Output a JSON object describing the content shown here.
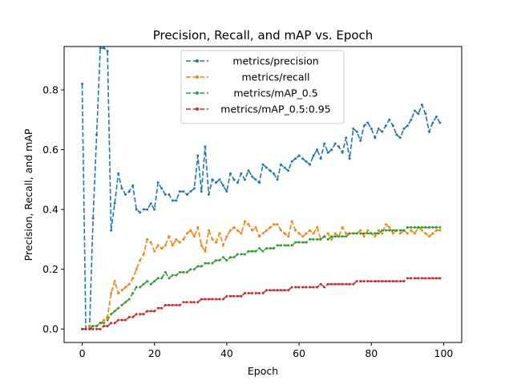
{
  "chart_data": {
    "type": "line",
    "title": "Precision, Recall, and mAP vs. Epoch",
    "xlabel": "Epoch",
    "ylabel": "Precision, Recall, and mAP",
    "xlim": [
      -5,
      105
    ],
    "ylim": [
      -0.045,
      0.945
    ],
    "xticks": [
      0,
      20,
      40,
      60,
      80,
      100
    ],
    "yticks": [
      0.0,
      0.2,
      0.4,
      0.6,
      0.8
    ],
    "xtick_labels": [
      "0",
      "20",
      "40",
      "60",
      "80",
      "100"
    ],
    "ytick_labels": [
      "0.0",
      "0.2",
      "0.4",
      "0.6",
      "0.8"
    ],
    "legend_position": "top-center",
    "grid": false,
    "series": [
      {
        "name": "metrics/precision",
        "color": "#1f77b4",
        "values": [
          0.82,
          0.0,
          0.0,
          0.37,
          0.65,
          0.94,
          0.94,
          0.93,
          0.33,
          0.42,
          0.52,
          0.47,
          0.45,
          0.46,
          0.48,
          0.4,
          0.39,
          0.4,
          0.4,
          0.42,
          0.4,
          0.49,
          0.47,
          0.45,
          0.45,
          0.43,
          0.43,
          0.46,
          0.46,
          0.45,
          0.46,
          0.47,
          0.58,
          0.46,
          0.61,
          0.45,
          0.5,
          0.49,
          0.5,
          0.48,
          0.46,
          0.52,
          0.5,
          0.49,
          0.52,
          0.5,
          0.53,
          0.51,
          0.5,
          0.49,
          0.55,
          0.54,
          0.53,
          0.52,
          0.5,
          0.55,
          0.54,
          0.53,
          0.56,
          0.57,
          0.58,
          0.57,
          0.56,
          0.55,
          0.58,
          0.6,
          0.57,
          0.62,
          0.59,
          0.6,
          0.62,
          0.61,
          0.59,
          0.64,
          0.57,
          0.67,
          0.66,
          0.63,
          0.68,
          0.69,
          0.67,
          0.64,
          0.67,
          0.66,
          0.68,
          0.7,
          0.68,
          0.65,
          0.64,
          0.67,
          0.68,
          0.7,
          0.73,
          0.72,
          0.75,
          0.72,
          0.66,
          0.69,
          0.71,
          0.69
        ]
      },
      {
        "name": "metrics/recall",
        "color": "#ff7f0e",
        "values": [
          0.0,
          0.0,
          0.01,
          0.01,
          0.01,
          0.02,
          0.03,
          0.04,
          0.12,
          0.16,
          0.12,
          0.13,
          0.14,
          0.15,
          0.17,
          0.2,
          0.23,
          0.25,
          0.3,
          0.29,
          0.26,
          0.28,
          0.27,
          0.28,
          0.31,
          0.28,
          0.3,
          0.29,
          0.3,
          0.32,
          0.33,
          0.31,
          0.34,
          0.28,
          0.26,
          0.33,
          0.3,
          0.29,
          0.32,
          0.28,
          0.31,
          0.33,
          0.34,
          0.33,
          0.32,
          0.36,
          0.35,
          0.33,
          0.34,
          0.31,
          0.32,
          0.33,
          0.34,
          0.35,
          0.35,
          0.33,
          0.32,
          0.31,
          0.36,
          0.33,
          0.32,
          0.31,
          0.32,
          0.33,
          0.32,
          0.34,
          0.3,
          0.31,
          0.32,
          0.3,
          0.32,
          0.31,
          0.34,
          0.32,
          0.32,
          0.32,
          0.32,
          0.33,
          0.31,
          0.33,
          0.32,
          0.31,
          0.33,
          0.32,
          0.35,
          0.34,
          0.32,
          0.33,
          0.32,
          0.33,
          0.32,
          0.33,
          0.32,
          0.34,
          0.33,
          0.32,
          0.31,
          0.32,
          0.33,
          0.33
        ]
      },
      {
        "name": "metrics/mAP_0.5",
        "color": "#2ca02c",
        "values": [
          0.0,
          0.0,
          0.0,
          0.01,
          0.01,
          0.02,
          0.02,
          0.03,
          0.05,
          0.06,
          0.07,
          0.08,
          0.09,
          0.1,
          0.12,
          0.14,
          0.14,
          0.15,
          0.16,
          0.15,
          0.16,
          0.17,
          0.17,
          0.19,
          0.17,
          0.18,
          0.18,
          0.19,
          0.19,
          0.19,
          0.2,
          0.2,
          0.21,
          0.21,
          0.22,
          0.22,
          0.22,
          0.23,
          0.23,
          0.24,
          0.23,
          0.24,
          0.24,
          0.25,
          0.25,
          0.25,
          0.26,
          0.26,
          0.26,
          0.27,
          0.26,
          0.27,
          0.27,
          0.27,
          0.28,
          0.28,
          0.28,
          0.28,
          0.28,
          0.29,
          0.29,
          0.29,
          0.29,
          0.3,
          0.3,
          0.3,
          0.3,
          0.31,
          0.3,
          0.31,
          0.31,
          0.31,
          0.31,
          0.31,
          0.32,
          0.32,
          0.32,
          0.32,
          0.32,
          0.32,
          0.32,
          0.32,
          0.32,
          0.33,
          0.33,
          0.33,
          0.33,
          0.33,
          0.33,
          0.33,
          0.34,
          0.34,
          0.34,
          0.34,
          0.34,
          0.34,
          0.34,
          0.34,
          0.34,
          0.34
        ]
      },
      {
        "name": "metrics/mAP_0.5:0.95",
        "color": "#d62728",
        "values": [
          0.0,
          0.0,
          0.0,
          0.0,
          0.0,
          0.0,
          0.01,
          0.01,
          0.02,
          0.02,
          0.03,
          0.03,
          0.03,
          0.04,
          0.04,
          0.05,
          0.05,
          0.05,
          0.06,
          0.06,
          0.06,
          0.07,
          0.07,
          0.08,
          0.08,
          0.08,
          0.08,
          0.08,
          0.09,
          0.09,
          0.09,
          0.09,
          0.09,
          0.1,
          0.1,
          0.1,
          0.1,
          0.1,
          0.1,
          0.1,
          0.11,
          0.11,
          0.11,
          0.11,
          0.11,
          0.12,
          0.12,
          0.12,
          0.12,
          0.12,
          0.12,
          0.13,
          0.13,
          0.13,
          0.13,
          0.13,
          0.13,
          0.13,
          0.14,
          0.14,
          0.14,
          0.14,
          0.14,
          0.14,
          0.14,
          0.14,
          0.15,
          0.14,
          0.15,
          0.15,
          0.15,
          0.15,
          0.15,
          0.15,
          0.15,
          0.15,
          0.16,
          0.16,
          0.16,
          0.16,
          0.16,
          0.16,
          0.16,
          0.16,
          0.16,
          0.16,
          0.16,
          0.16,
          0.16,
          0.16,
          0.17,
          0.17,
          0.17,
          0.17,
          0.17,
          0.17,
          0.17,
          0.17,
          0.17,
          0.17
        ]
      }
    ]
  }
}
